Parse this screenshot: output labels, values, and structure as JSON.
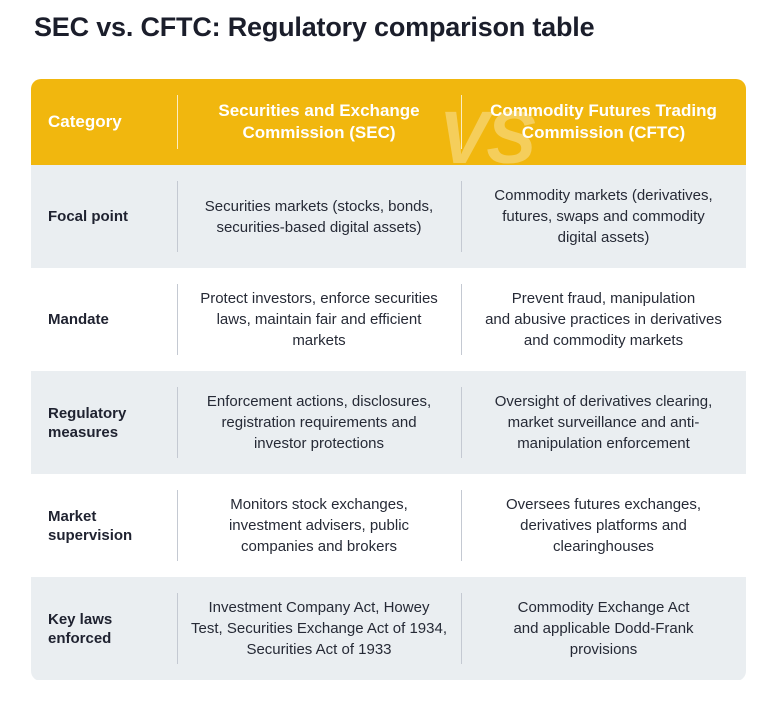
{
  "title": "SEC vs. CFTC: Regulatory comparison table",
  "watermark": "VS",
  "header": {
    "category": "Category",
    "sec_line1": "Securities and Exchange",
    "sec_line2": "Commission (SEC)",
    "cftc_line1": "Commodity Futures Trading",
    "cftc_line2": "Commission (CFTC)"
  },
  "colors": {
    "header_bg": "#f1b70e",
    "row_alt_bg": "#eaeef1",
    "row_plain_bg": "#ffffff",
    "title_text": "#1b1e2b"
  },
  "rows": [
    {
      "category": [
        "Focal point"
      ],
      "sec": [
        "Securities markets (stocks, bonds,",
        "securities-based digital assets)"
      ],
      "cftc": [
        "Commodity markets (derivatives,",
        "futures, swaps and commodity",
        "digital assets)"
      ]
    },
    {
      "category": [
        "Mandate"
      ],
      "sec": [
        "Protect investors, enforce securities",
        "laws, maintain fair and efficient",
        "markets"
      ],
      "cftc": [
        "Prevent fraud, manipulation",
        "and abusive practices in derivatives",
        "and commodity markets"
      ]
    },
    {
      "category": [
        "Regulatory",
        "measures"
      ],
      "sec": [
        "Enforcement actions, disclosures,",
        "registration requirements and",
        "investor protections"
      ],
      "cftc": [
        "Oversight of derivatives clearing,",
        "market surveillance and anti-",
        "manipulation enforcement"
      ]
    },
    {
      "category": [
        "Market",
        "supervision"
      ],
      "sec": [
        "Monitors stock exchanges,",
        "investment advisers, public",
        "companies and brokers"
      ],
      "cftc": [
        "Oversees futures exchanges,",
        "derivatives platforms and",
        "clearinghouses"
      ]
    },
    {
      "category": [
        "Key laws",
        "enforced"
      ],
      "sec": [
        "Investment Company Act, Howey",
        "Test, Securities Exchange Act of 1934,",
        "Securities Act of 1933"
      ],
      "cftc": [
        "Commodity Exchange Act",
        "and applicable Dodd-Frank",
        "provisions"
      ]
    }
  ]
}
